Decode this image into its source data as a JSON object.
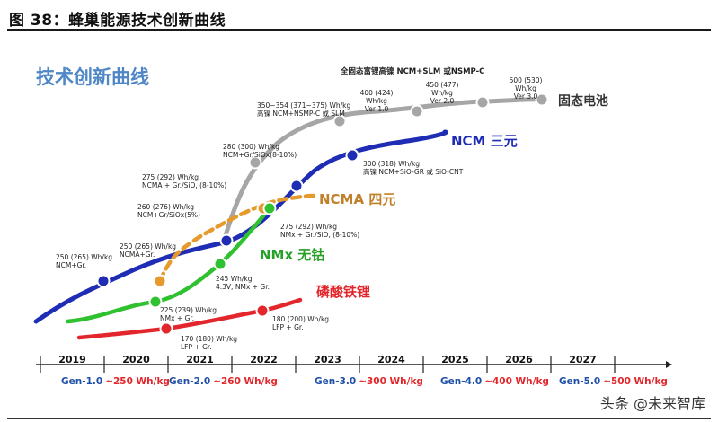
{
  "figure": {
    "title": "图 38：蜂巢能源技术创新曲线",
    "watermark": "头条 @未来智库"
  },
  "chart_data": {
    "type": "line",
    "title": "技术创新曲线",
    "top_note": "全固态富锂高镍 NCM+SLM 或NSMP-C",
    "years": [
      "2019",
      "2020",
      "2021",
      "2022",
      "2023",
      "2024",
      "2025",
      "2026",
      "2027"
    ],
    "generations": [
      {
        "gen": "Gen-1.0",
        "target": "~250 Wh/kg"
      },
      {
        "gen": "Gen-2.0",
        "target": "~260 Wh/kg"
      },
      {
        "gen": "Gen-3.0",
        "target": "~300 Wh/kg"
      },
      {
        "gen": "Gen-4.0",
        "target": "~400 Wh/kg"
      },
      {
        "gen": "Gen-5.0",
        "target": "~500 Wh/kg"
      }
    ],
    "series": [
      {
        "name": "固态电池",
        "color": "#a6a6a6",
        "points": [
          {
            "label": [
              "350~354 (371~375) Wh/kg",
              "高镍 NCM+NSMP-C 或 SLM"
            ]
          },
          {
            "label": [
              "400 (424)",
              "Wh/kg",
              "Ver 1.0"
            ]
          },
          {
            "label": [
              "450 (477)",
              "Wh/kg",
              "Ver 2.0"
            ]
          },
          {
            "label": [
              "500 (530)",
              "Wh/kg",
              "Ver 3.0"
            ]
          }
        ]
      },
      {
        "name": "NCM 三元",
        "color": "#1f2db5",
        "points": [
          {
            "label": [
              "250 (265) Wh/kg",
              "NCM+Gr."
            ]
          },
          {
            "label": [
              "260 (276) Wh/kg",
              "NCM+Gr/SiOx(5%)"
            ]
          },
          {
            "label": [
              "280 (300) Wh/kg",
              "NCM+Gr/SiOx(8-10%)"
            ]
          },
          {
            "label": [
              "300 (318) Wh/kg",
              "高镍 NCM+SiO-GR 或 SiO-CNT"
            ]
          }
        ]
      },
      {
        "name": "NCMA 四元",
        "color": "#e59a2c",
        "points": [
          {
            "label": [
              "250 (265) Wh/kg",
              "NCMA+Gr."
            ]
          },
          {
            "label": [
              "275 (292) Wh/kg",
              "NCMA + Gr./SiO, (8-10%)"
            ]
          }
        ]
      },
      {
        "name": "NMx 无钴",
        "color": "#2fc12f",
        "points": [
          {
            "label": [
              "225 (239) Wh/kg",
              "NMx + Gr."
            ]
          },
          {
            "label": [
              "245 Wh/kg",
              "4.3V, NMx + Gr."
            ]
          },
          {
            "label": [
              "275 (292) Wh/kg",
              "NMx + Gr./SiO, (8-10%)"
            ]
          }
        ]
      },
      {
        "name": "磷酸铁锂",
        "color": "#e2262b",
        "points": [
          {
            "label": [
              "170 (180) Wh/kg",
              "LFP + Gr."
            ]
          },
          {
            "label": [
              "180 (200) Wh/kg",
              "LFP + Gr."
            ]
          }
        ]
      }
    ]
  }
}
